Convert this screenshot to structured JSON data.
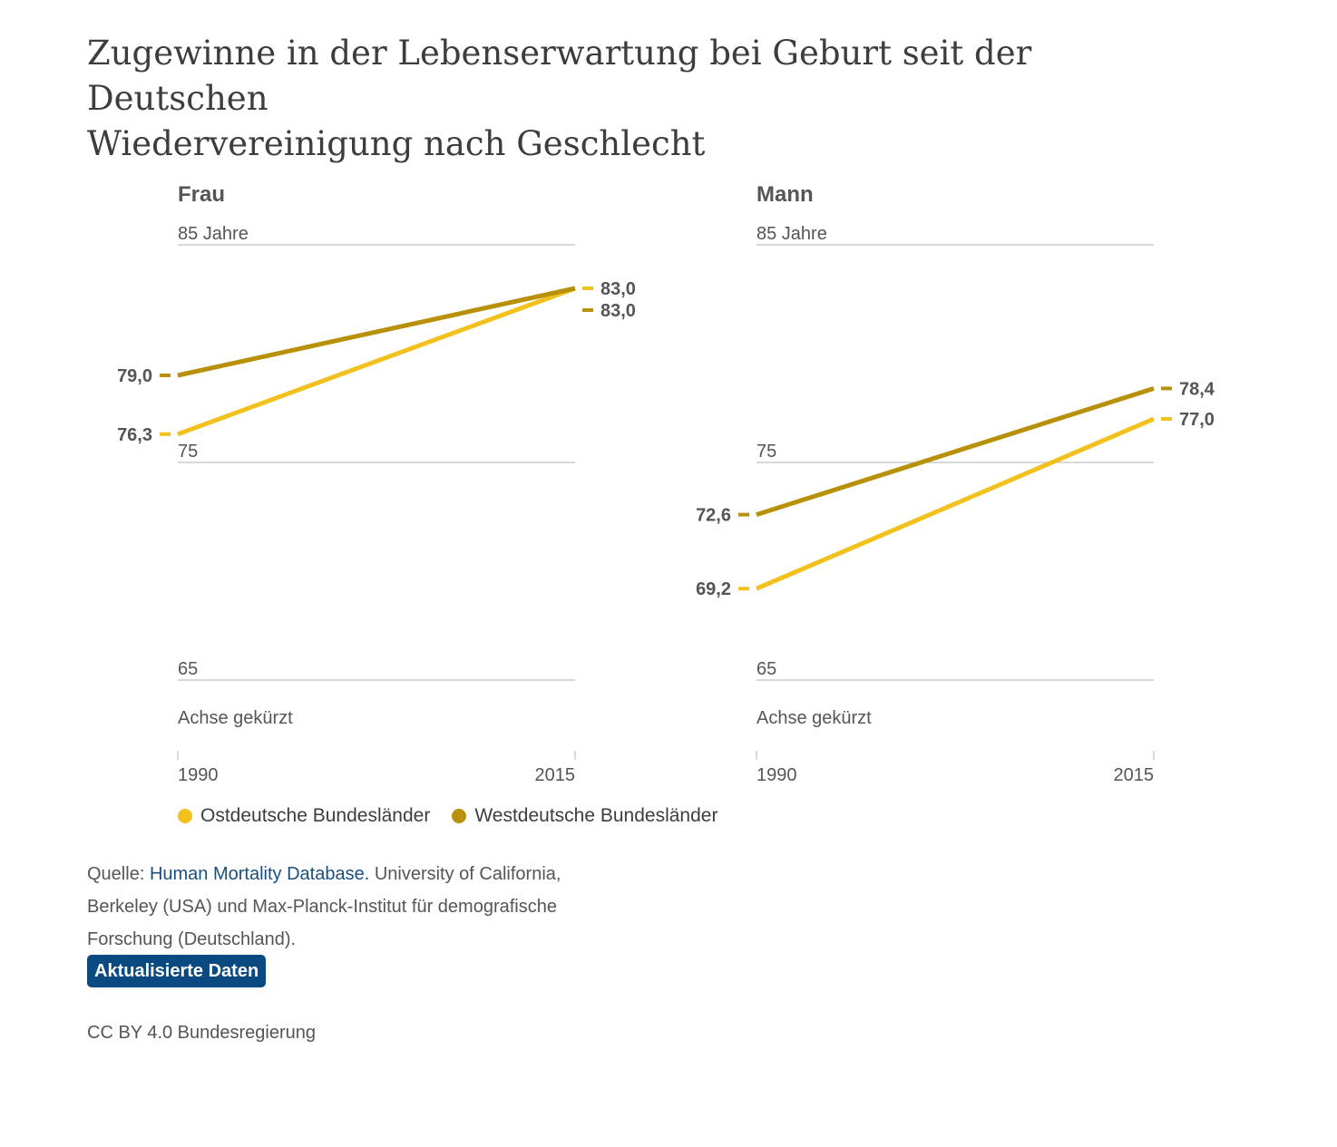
{
  "title_lines": [
    "Zugewinne in der Lebenserwartung bei Geburt seit der Deutschen",
    "Wiedervereinigung nach Geschlecht"
  ],
  "chart_data": [
    {
      "type": "line",
      "title": "Frau",
      "x": [
        "1990",
        "2015"
      ],
      "ylim": [
        65,
        85
      ],
      "yticks": [
        85,
        75,
        65
      ],
      "ytick_labels": [
        "85 Jahre",
        "75",
        "65"
      ],
      "axis_note": "Achse gekürzt",
      "series": [
        {
          "name": "Ostdeutsche Bundesländer",
          "values": [
            76.3,
            83.0
          ],
          "labels": [
            "76,3",
            "83,0"
          ],
          "color": "#f3c11d"
        },
        {
          "name": "Westdeutsche Bundesländer",
          "values": [
            79.0,
            83.0
          ],
          "labels": [
            "79,0",
            "83,0"
          ],
          "color": "#b8900a"
        }
      ]
    },
    {
      "type": "line",
      "title": "Mann",
      "x": [
        "1990",
        "2015"
      ],
      "ylim": [
        65,
        85
      ],
      "yticks": [
        85,
        75,
        65
      ],
      "ytick_labels": [
        "85 Jahre",
        "75",
        "65"
      ],
      "axis_note": "Achse gekürzt",
      "series": [
        {
          "name": "Ostdeutsche Bundesländer",
          "values": [
            69.2,
            77.0
          ],
          "labels": [
            "69,2",
            "77,0"
          ],
          "color": "#f3c11d"
        },
        {
          "name": "Westdeutsche Bundesländer",
          "values": [
            72.6,
            78.4
          ],
          "labels": [
            "72,6",
            "78,4"
          ],
          "color": "#b8900a"
        }
      ]
    }
  ],
  "legend": [
    {
      "label": "Ostdeutsche Bundesländer",
      "color": "#f3c11d"
    },
    {
      "label": "Westdeutsche Bundesländer",
      "color": "#b8900a"
    }
  ],
  "source": {
    "prefix": "Quelle: ",
    "link_text": "Human Mortality Database.",
    "rest": " University of California, Berkeley (USA) und Max-Planck-Institut für demografische Forschung (Deutschland)."
  },
  "update_button_label": "Aktualisierte Daten",
  "license": "CC BY 4.0 Bundesregierung",
  "colors": {
    "text": "#3d3d3d",
    "grid": "#cccccc",
    "link": "#1a4e7f",
    "button": "#0b4a80"
  }
}
